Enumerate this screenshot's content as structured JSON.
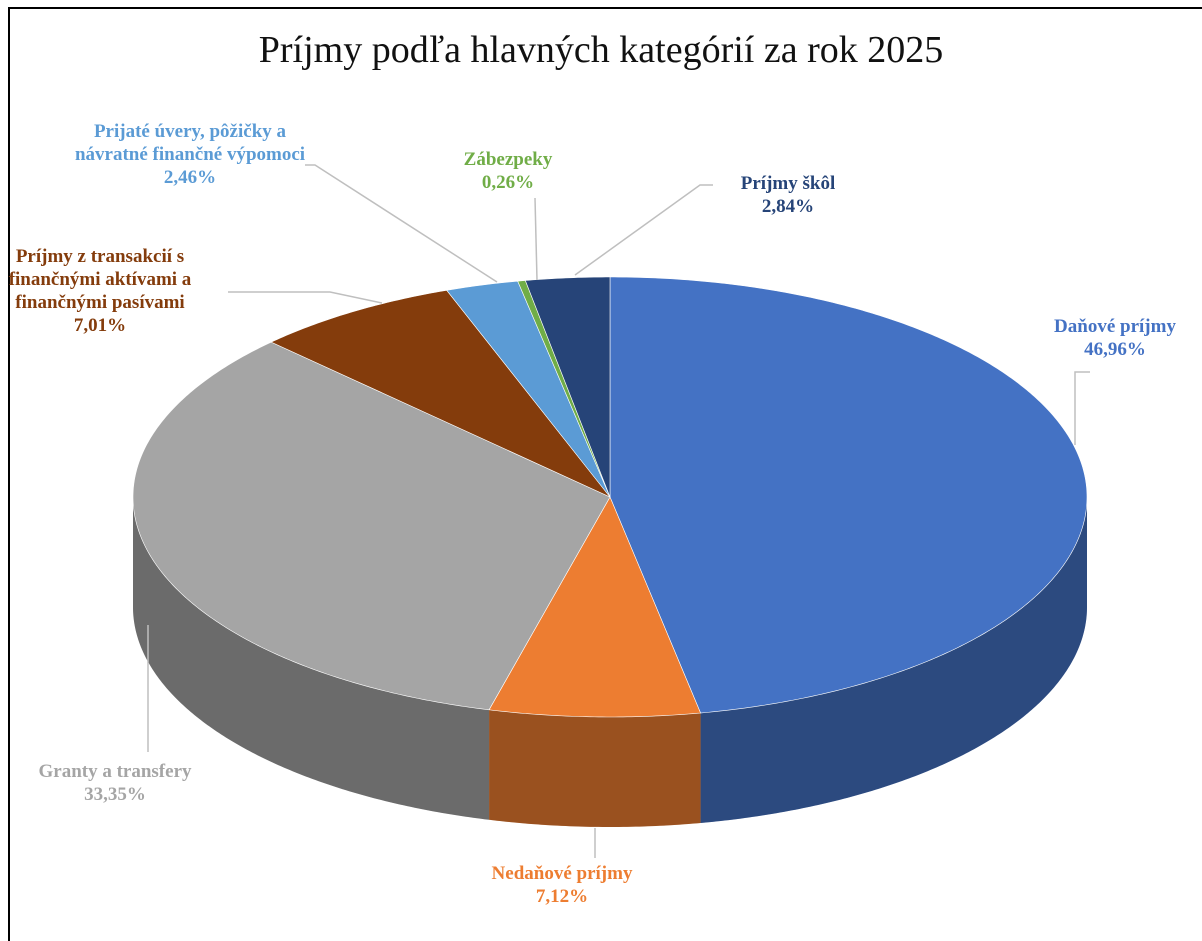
{
  "chart_data": {
    "type": "pie",
    "title": "Príjmy podľa hlavných kategórií za rok 2025",
    "categories": [
      "Daňové príjmy",
      "Nedaňové príjmy",
      "Granty a transfery",
      "Príjmy z transakcií s finančnými aktívami a finančnými pasívami",
      "Prijaté úvery, pôžičky a návratné finančné výpomoci",
      "Zábezpeky",
      "Príjmy škôl"
    ],
    "values": [
      46.96,
      7.12,
      33.35,
      7.01,
      2.46,
      0.26,
      2.84
    ],
    "value_labels": [
      "46,96%",
      "7,12%",
      "33,35%",
      "7,01%",
      "2,46%",
      "0,26%",
      "2,84%"
    ],
    "colors": [
      "#4472c4",
      "#ed7d31",
      "#a5a5a5",
      "#843c0c",
      "#5b9bd5",
      "#70ad47",
      "#264478"
    ]
  }
}
